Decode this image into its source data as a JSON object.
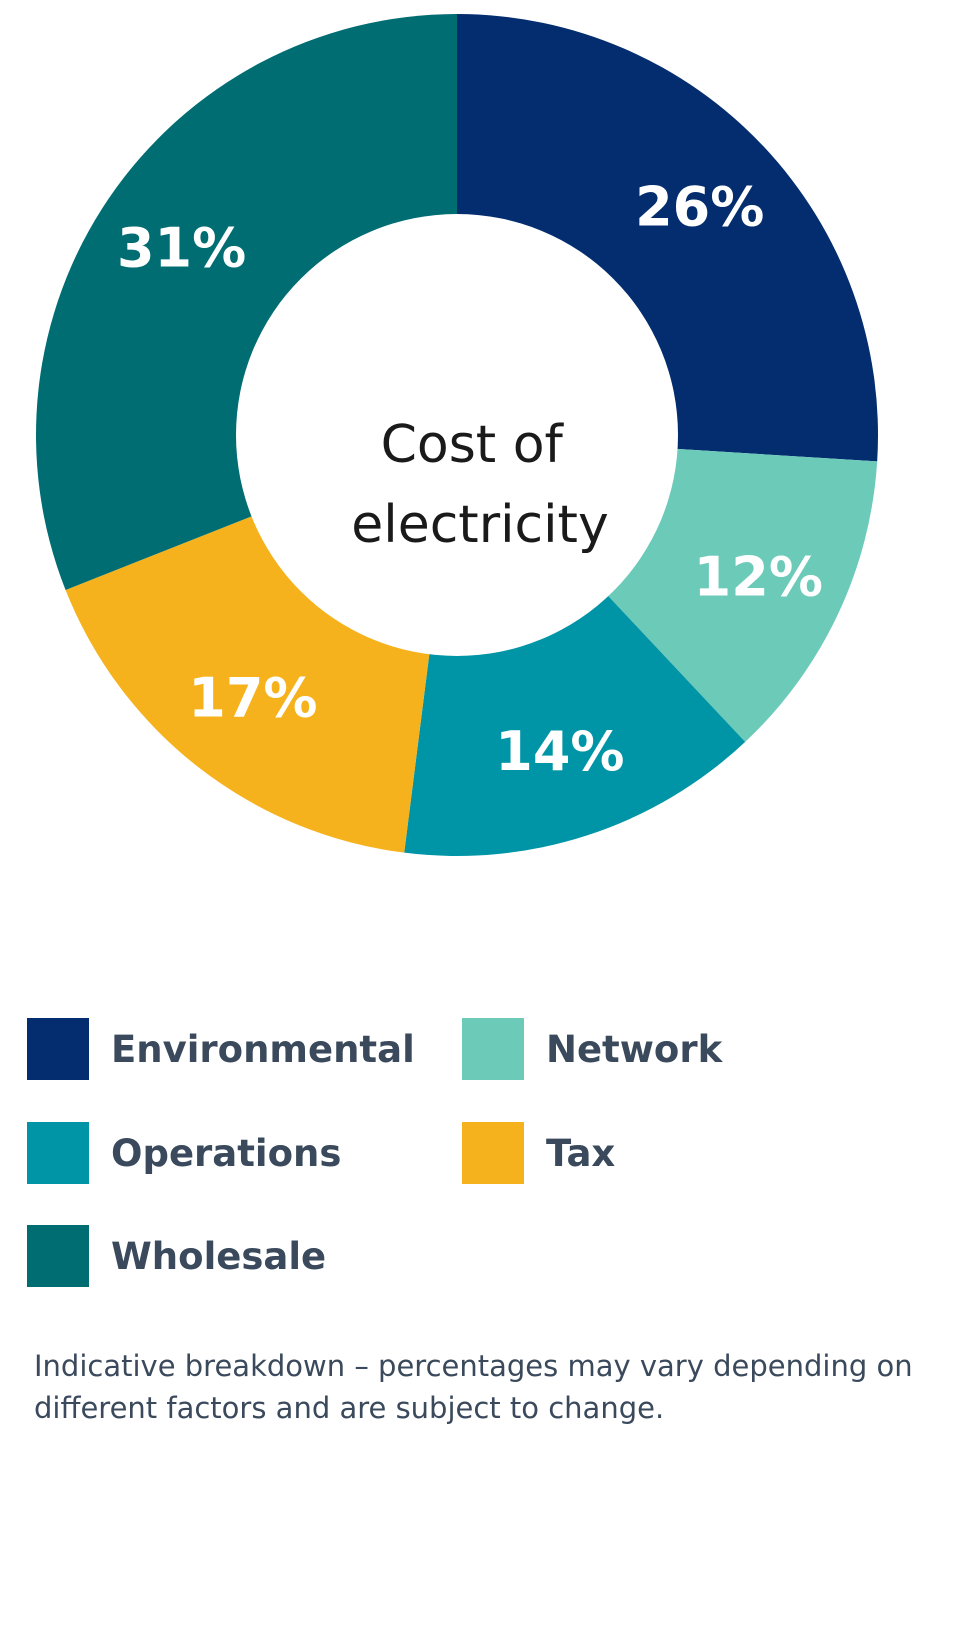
{
  "chart_data": {
    "type": "pie",
    "center_label": [
      "Cost of",
      "electricity"
    ],
    "categories": [
      "Environmental",
      "Network",
      "Operations",
      "Tax",
      "Wholesale"
    ],
    "values": [
      26,
      12,
      14,
      17,
      31
    ],
    "value_labels": [
      "26%",
      "12%",
      "14%",
      "17%",
      "31%"
    ],
    "colors": [
      "#032d6e",
      "#6ccab9",
      "#0095a6",
      "#f5b21d",
      "#006d73"
    ],
    "legend_placement": "bottom"
  },
  "legend": {
    "items": [
      {
        "label": "Environmental",
        "color": "#032d6e"
      },
      {
        "label": "Network",
        "color": "#6ccab9"
      },
      {
        "label": "Operations",
        "color": "#0095a6"
      },
      {
        "label": "Tax",
        "color": "#f5b21d"
      },
      {
        "label": "Wholesale",
        "color": "#006d73"
      }
    ]
  },
  "note": "Indicative breakdown – percentages may vary depending on different factors and are subject to change."
}
